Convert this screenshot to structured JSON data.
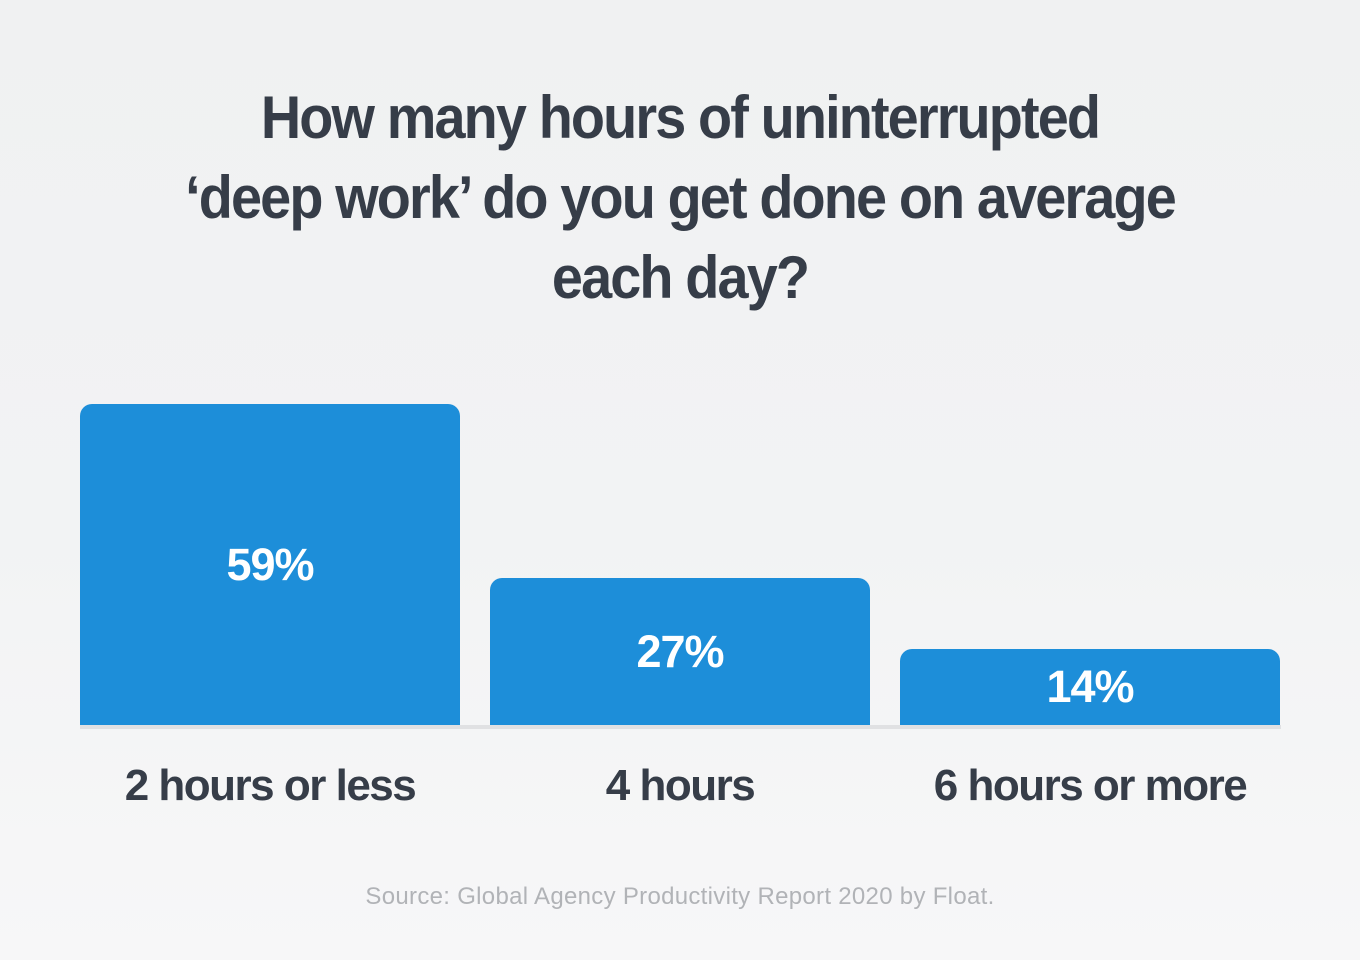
{
  "title": {
    "line1": "How many hours of uninterrupted",
    "line2": "‘deep work’ do you get done on average",
    "line3": "each day?"
  },
  "chart_data": {
    "type": "bar",
    "title": "How many hours of uninterrupted ‘deep work’ do you get done on average each day?",
    "categories": [
      "2 hours or less",
      "4 hours",
      "6 hours or more"
    ],
    "values": [
      59,
      27,
      14
    ],
    "unit": "percent",
    "value_labels": [
      "59%",
      "27%",
      "14%"
    ],
    "label_position": "inside-center",
    "bar_color": "#1d8ed9",
    "value_label_color": "#ffffff",
    "ylim": [
      0,
      59
    ],
    "grid": false,
    "legend": false,
    "orientation": "vertical"
  },
  "source": {
    "text": "Source: Global Agency Productivity Report 2020 by Float."
  },
  "colors": {
    "background_top": "#f0f1f2",
    "background_bottom": "#f7f7f8",
    "title_text": "#363d48",
    "category_text": "#363d48",
    "bar_blue": "#1d8ed9",
    "baseline_rule": "#e0e1e3",
    "source_text": "#b1b3b7"
  }
}
